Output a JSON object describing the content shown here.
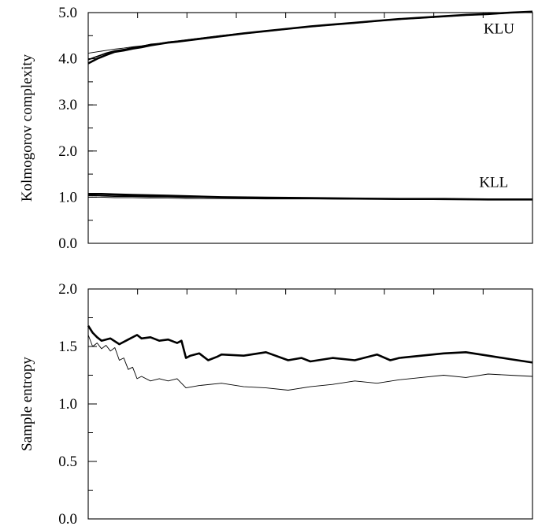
{
  "chart_data": [
    {
      "type": "line",
      "ylabel": "Kolmogorov complexity",
      "xlabel": "",
      "xlim": [
        0,
        100
      ],
      "ylim": [
        0,
        5
      ],
      "yticks": [
        {
          "value": 0,
          "label": "0.0"
        },
        {
          "value": 1,
          "label": "1.0"
        },
        {
          "value": 2,
          "label": "2.0"
        },
        {
          "value": 3,
          "label": "3.0"
        },
        {
          "value": 4,
          "label": "4.0"
        },
        {
          "value": 5,
          "label": "5.0"
        }
      ],
      "y_minor_step": 0.5,
      "x_top_ticks": 8,
      "grid": false,
      "annotations": [
        {
          "text": "KLU",
          "x": 89,
          "y": 4.55
        },
        {
          "text": "KLL",
          "x": 88,
          "y": 1.22
        }
      ],
      "series": [
        {
          "group": "KLU",
          "style": "thick",
          "x": [
            0,
            2,
            4,
            6,
            8,
            10,
            12,
            14,
            16,
            18,
            20,
            25,
            30,
            35,
            40,
            45,
            50,
            55,
            60,
            65,
            70,
            75,
            80,
            85,
            90,
            95,
            100
          ],
          "y": [
            3.9,
            4.0,
            4.08,
            4.15,
            4.18,
            4.22,
            4.25,
            4.29,
            4.32,
            4.35,
            4.37,
            4.43,
            4.49,
            4.55,
            4.6,
            4.65,
            4.7,
            4.74,
            4.78,
            4.82,
            4.86,
            4.89,
            4.92,
            4.95,
            4.97,
            5.0,
            5.02
          ]
        },
        {
          "group": "KLU",
          "style": "medium",
          "x": [
            0,
            2,
            4,
            6,
            8,
            10,
            12,
            14,
            16,
            18,
            20,
            25,
            30,
            35,
            40,
            45,
            50,
            55,
            60,
            65,
            70,
            75,
            80,
            85,
            90,
            95,
            100
          ],
          "y": [
            3.98,
            4.05,
            4.12,
            4.17,
            4.2,
            4.24,
            4.27,
            4.31,
            4.33,
            4.36,
            4.38,
            4.44,
            4.5,
            4.55,
            4.6,
            4.65,
            4.7,
            4.74,
            4.78,
            4.82,
            4.86,
            4.89,
            4.92,
            4.95,
            4.97,
            5.0,
            5.02
          ]
        },
        {
          "group": "KLU",
          "style": "thin",
          "x": [
            0,
            2,
            4,
            6,
            8,
            10,
            12,
            14,
            16,
            18,
            20,
            25,
            30,
            35,
            40,
            45,
            50,
            55,
            60,
            65,
            70,
            75,
            80,
            85,
            90,
            95,
            100
          ],
          "y": [
            4.12,
            4.15,
            4.18,
            4.21,
            4.23,
            4.26,
            4.28,
            4.31,
            4.33,
            4.35,
            4.37,
            4.43,
            4.49,
            4.54,
            4.59,
            4.64,
            4.69,
            4.73,
            4.77,
            4.81,
            4.85,
            4.88,
            4.91,
            4.94,
            4.96,
            4.99,
            5.01
          ]
        },
        {
          "group": "KLL",
          "style": "thick",
          "x": [
            0,
            3,
            6,
            10,
            14,
            18,
            22,
            26,
            30,
            40,
            50,
            60,
            70,
            80,
            90,
            100
          ],
          "y": [
            1.07,
            1.07,
            1.06,
            1.05,
            1.04,
            1.03,
            1.02,
            1.01,
            1.0,
            0.99,
            0.98,
            0.97,
            0.96,
            0.96,
            0.95,
            0.95
          ]
        },
        {
          "group": "KLL",
          "style": "medium",
          "x": [
            0,
            3,
            6,
            10,
            14,
            18,
            22,
            26,
            30,
            40,
            50,
            60,
            70,
            80,
            90,
            100
          ],
          "y": [
            1.04,
            1.03,
            1.02,
            1.02,
            1.01,
            1.01,
            1.0,
            1.0,
            0.99,
            0.98,
            0.97,
            0.96,
            0.96,
            0.95,
            0.95,
            0.95
          ]
        },
        {
          "group": "KLL",
          "style": "thin",
          "x": [
            0,
            3,
            6,
            10,
            14,
            18,
            22,
            26,
            30,
            40,
            50,
            60,
            70,
            80,
            90,
            100
          ],
          "y": [
            1.0,
            1.0,
            0.99,
            0.99,
            0.98,
            0.98,
            0.97,
            0.97,
            0.97,
            0.96,
            0.96,
            0.96,
            0.95,
            0.95,
            0.95,
            0.95
          ]
        }
      ]
    },
    {
      "type": "line",
      "ylabel": "Sample entropy",
      "xlabel": "",
      "xlim": [
        0,
        100
      ],
      "ylim": [
        0,
        2
      ],
      "yticks": [
        {
          "value": 0,
          "label": "0.0"
        },
        {
          "value": 0.5,
          "label": "0.5"
        },
        {
          "value": 1,
          "label": "1.0"
        },
        {
          "value": 1.5,
          "label": "1.5"
        },
        {
          "value": 2,
          "label": "2.0"
        }
      ],
      "y_minor_step": 0.25,
      "x_top_ticks": 8,
      "grid": false,
      "series": [
        {
          "style": "thick",
          "x": [
            0,
            1,
            2,
            3,
            5,
            7,
            9,
            11,
            12,
            14,
            16,
            18,
            20,
            21,
            22,
            23,
            25,
            27,
            29,
            30,
            35,
            40,
            45,
            48,
            50,
            55,
            60,
            65,
            68,
            70,
            75,
            80,
            85,
            90,
            95,
            100
          ],
          "y": [
            1.68,
            1.62,
            1.58,
            1.55,
            1.57,
            1.52,
            1.56,
            1.6,
            1.57,
            1.58,
            1.55,
            1.56,
            1.53,
            1.55,
            1.4,
            1.42,
            1.44,
            1.38,
            1.41,
            1.43,
            1.42,
            1.45,
            1.38,
            1.4,
            1.37,
            1.4,
            1.38,
            1.43,
            1.38,
            1.4,
            1.42,
            1.44,
            1.45,
            1.42,
            1.39,
            1.36
          ]
        },
        {
          "style": "thin",
          "x": [
            0,
            1,
            2,
            3,
            4,
            5,
            6,
            7,
            8,
            9,
            10,
            11,
            12,
            14,
            16,
            18,
            20,
            21,
            22,
            25,
            30,
            35,
            40,
            45,
            50,
            55,
            60,
            65,
            70,
            75,
            80,
            85,
            90,
            95,
            100
          ],
          "y": [
            1.6,
            1.5,
            1.53,
            1.48,
            1.51,
            1.46,
            1.49,
            1.38,
            1.4,
            1.3,
            1.32,
            1.22,
            1.24,
            1.2,
            1.22,
            1.2,
            1.22,
            1.18,
            1.14,
            1.16,
            1.18,
            1.15,
            1.14,
            1.12,
            1.15,
            1.17,
            1.2,
            1.18,
            1.21,
            1.23,
            1.25,
            1.23,
            1.26,
            1.25,
            1.24
          ]
        }
      ]
    }
  ]
}
